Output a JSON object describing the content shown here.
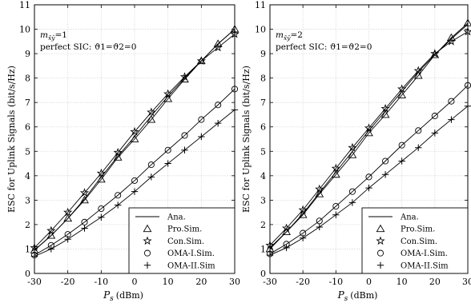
{
  "chart_data": [
    {
      "type": "line",
      "annotation": "m_x̄ȳ=1",
      "annotation_sub": "x̄ȳ",
      "annotation_base": "m",
      "annotation_value": "=1",
      "annotation2": "perfect SIC: ϑ1=ϑ2=0",
      "xlabel": "P_s (dBm)",
      "xlabel_main": "P",
      "xlabel_sub": "s",
      "xlabel_unit": "(dBm)",
      "ylabel": "ESC for Uplink Signals (bit/s/Hz)",
      "xlim": [
        -30,
        30
      ],
      "ylim": [
        0,
        11
      ],
      "xticks": [
        -30,
        -20,
        -10,
        0,
        10,
        20,
        30
      ],
      "yticks": [
        0,
        1,
        2,
        3,
        4,
        5,
        6,
        7,
        8,
        9,
        10,
        11
      ],
      "grid": true,
      "legend_position": "bottom-right",
      "x": [
        -30,
        -25,
        -20,
        -15,
        -10,
        -5,
        0,
        5,
        10,
        15,
        20,
        25,
        30
      ],
      "series": [
        {
          "name": "Ana.",
          "marker": "none",
          "values": [
            0.95,
            1.55,
            2.25,
            3.05,
            3.95,
            4.8,
            5.6,
            6.45,
            7.25,
            8.0,
            8.7,
            9.4,
            10.0
          ]
        },
        {
          "name": "Pro.Sim.",
          "marker": "triangle",
          "values": [
            0.95,
            1.55,
            2.25,
            3.0,
            3.85,
            4.75,
            5.5,
            6.3,
            7.15,
            7.95,
            8.7,
            9.4,
            10.0
          ]
        },
        {
          "name": "Con.Sim.",
          "marker": "star",
          "values": [
            1.05,
            1.75,
            2.5,
            3.3,
            4.1,
            4.95,
            5.8,
            6.6,
            7.35,
            8.05,
            8.7,
            9.25,
            9.8
          ]
        },
        {
          "name": "OMA-I.Sim.",
          "marker": "circle",
          "values": [
            0.75,
            1.15,
            1.6,
            2.1,
            2.65,
            3.2,
            3.8,
            4.45,
            5.05,
            5.65,
            6.3,
            6.9,
            7.55
          ]
        },
        {
          "name": "OMA-II.Sim",
          "marker": "plus",
          "values": [
            0.7,
            1.0,
            1.4,
            1.85,
            2.3,
            2.8,
            3.35,
            3.95,
            4.5,
            5.05,
            5.6,
            6.15,
            6.7
          ]
        }
      ]
    },
    {
      "type": "line",
      "annotation": "m_x̄ȳ=2",
      "annotation_sub": "x̄ȳ",
      "annotation_base": "m",
      "annotation_value": "=2",
      "annotation2": "perfect SIC: ϑ1=ϑ2=0",
      "xlabel": "P_s (dBm)",
      "xlabel_main": "P",
      "xlabel_sub": "s",
      "xlabel_unit": "(dBm)",
      "ylabel": "ESC for Uplink Signals (bit/s/Hz)",
      "xlim": [
        -30,
        30
      ],
      "ylim": [
        0,
        11
      ],
      "xticks": [
        -30,
        -20,
        -10,
        0,
        10,
        20,
        30
      ],
      "yticks": [
        0,
        1,
        2,
        3,
        4,
        5,
        6,
        7,
        8,
        9,
        10,
        11
      ],
      "grid": true,
      "legend_position": "bottom-right",
      "x": [
        -30,
        -25,
        -20,
        -15,
        -10,
        -5,
        0,
        5,
        10,
        15,
        20,
        25,
        30
      ],
      "series": [
        {
          "name": "Ana.",
          "marker": "none",
          "values": [
            1.05,
            1.7,
            2.45,
            3.3,
            4.15,
            5.0,
            5.85,
            6.65,
            7.45,
            8.25,
            8.95,
            9.6,
            10.2
          ]
        },
        {
          "name": "Pro.Sim.",
          "marker": "triangle",
          "values": [
            1.0,
            1.7,
            2.4,
            3.25,
            4.05,
            4.85,
            5.75,
            6.5,
            7.3,
            8.1,
            8.95,
            9.65,
            10.25
          ]
        },
        {
          "name": "Con.Sim.",
          "marker": "star",
          "values": [
            1.15,
            1.85,
            2.6,
            3.45,
            4.3,
            5.15,
            5.95,
            6.75,
            7.55,
            8.3,
            9.0,
            9.5,
            9.9
          ]
        },
        {
          "name": "OMA-I.Sim.",
          "marker": "circle",
          "values": [
            0.8,
            1.2,
            1.65,
            2.15,
            2.75,
            3.35,
            3.95,
            4.6,
            5.25,
            5.85,
            6.45,
            7.05,
            7.7
          ]
        },
        {
          "name": "OMA-II.Sim",
          "marker": "plus",
          "values": [
            0.75,
            1.05,
            1.45,
            1.9,
            2.4,
            2.9,
            3.5,
            4.05,
            4.6,
            5.15,
            5.75,
            6.3,
            6.85
          ]
        }
      ]
    }
  ]
}
